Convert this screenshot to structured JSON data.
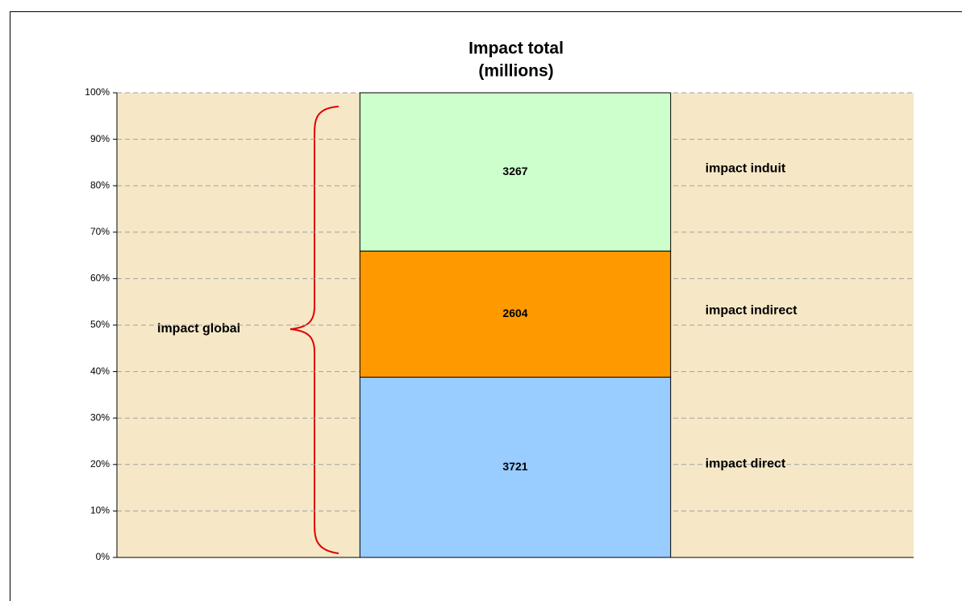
{
  "chart_data": {
    "type": "bar",
    "stacking": "percent",
    "title": "Impact total",
    "subtitle": "(millions)",
    "categories": [
      null
    ],
    "series": [
      {
        "name": "impact direct",
        "color": "#99ccff",
        "values": [
          3721
        ]
      },
      {
        "name": "impact indirect",
        "color": "#ff9900",
        "values": [
          2604
        ]
      },
      {
        "name": "impact induit",
        "color": "#ccffcc",
        "values": [
          3267
        ]
      }
    ],
    "annotations": [
      "impact global"
    ],
    "ylim": [
      0,
      100
    ],
    "yticks": [
      {
        "value": 0,
        "label": "0%"
      },
      {
        "value": 10,
        "label": "10%"
      },
      {
        "value": 20,
        "label": "20%"
      },
      {
        "value": 30,
        "label": "30%"
      },
      {
        "value": 40,
        "label": "40%"
      },
      {
        "value": 50,
        "label": "50%"
      },
      {
        "value": 60,
        "label": "60%"
      },
      {
        "value": 70,
        "label": "70%"
      },
      {
        "value": 80,
        "label": "80%"
      },
      {
        "value": 90,
        "label": "90%"
      },
      {
        "value": 100,
        "label": "100%"
      }
    ],
    "grid": true
  }
}
